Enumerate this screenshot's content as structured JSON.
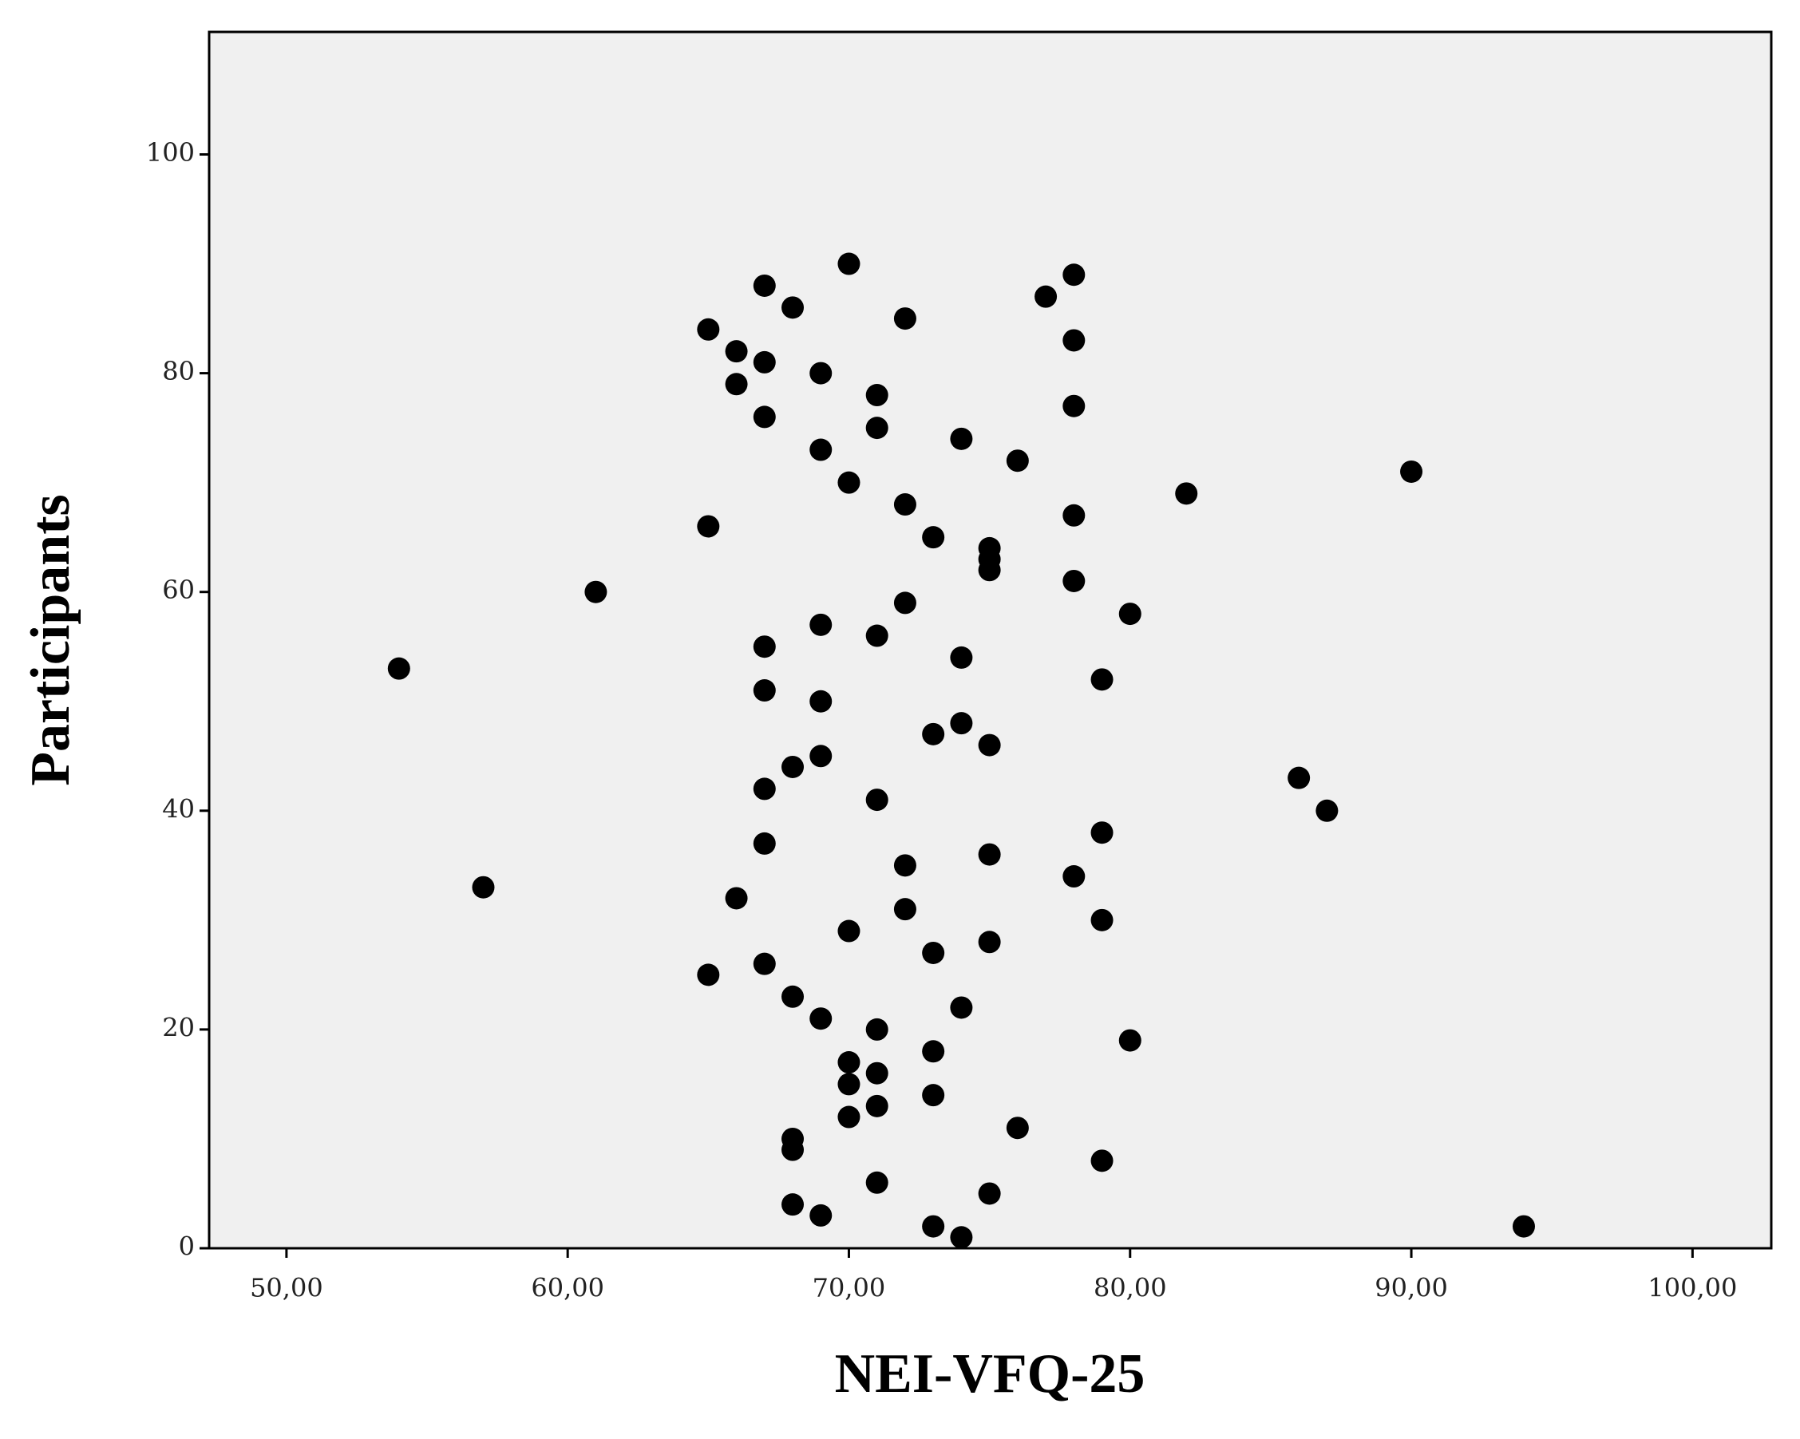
{
  "chart_data": {
    "type": "scatter",
    "x_label": "NEI-VFQ-25",
    "y_label": "Participants",
    "x": [
      70,
      78,
      67,
      77,
      68,
      72,
      65,
      78,
      66,
      67,
      69,
      66,
      71,
      78,
      67,
      71,
      74,
      69,
      76,
      90,
      70,
      82,
      72,
      78,
      65,
      73,
      75,
      75,
      75,
      78,
      61,
      72,
      80,
      69,
      71,
      67,
      74,
      54,
      79,
      67,
      69,
      74,
      73,
      75,
      69,
      68,
      86,
      67,
      71,
      87,
      79,
      67,
      75,
      72,
      78,
      57,
      66,
      72,
      79,
      70,
      75,
      73,
      67,
      65,
      68,
      74,
      69,
      71,
      80,
      73,
      70,
      71,
      70,
      73,
      71,
      70,
      76,
      68,
      68,
      79,
      71,
      75,
      68,
      69,
      73,
      94,
      74
    ],
    "values": [
      90,
      89,
      88,
      87,
      86,
      85,
      84,
      83,
      82,
      81,
      80,
      79,
      78,
      77,
      76,
      75,
      74,
      73,
      72,
      71,
      70,
      69,
      68,
      67,
      66,
      65,
      64,
      63,
      62,
      61,
      60,
      59,
      58,
      57,
      56,
      55,
      54,
      53,
      52,
      51,
      50,
      48,
      47,
      46,
      45,
      44,
      43,
      42,
      41,
      40,
      38,
      37,
      36,
      35,
      34,
      33,
      32,
      31,
      30,
      29,
      28,
      27,
      26,
      25,
      23,
      22,
      21,
      20,
      19,
      18,
      17,
      16,
      15,
      14,
      13,
      12,
      11,
      10,
      9,
      8,
      6,
      5,
      4,
      3,
      2,
      2,
      1
    ],
    "color": "#000000",
    "background": "#f0f0f0",
    "xlim": [
      47.25,
      102.8
    ],
    "ylim": [
      0,
      111.2
    ],
    "xticks": [
      {
        "value": 50,
        "label": "50,00"
      },
      {
        "value": 60,
        "label": "60,00"
      },
      {
        "value": 70,
        "label": "70,00"
      },
      {
        "value": 80,
        "label": "80,00"
      },
      {
        "value": 90,
        "label": "90,00"
      },
      {
        "value": 100,
        "label": "100,00"
      }
    ],
    "yticks": [
      0,
      20,
      40,
      60,
      80,
      100
    ]
  }
}
